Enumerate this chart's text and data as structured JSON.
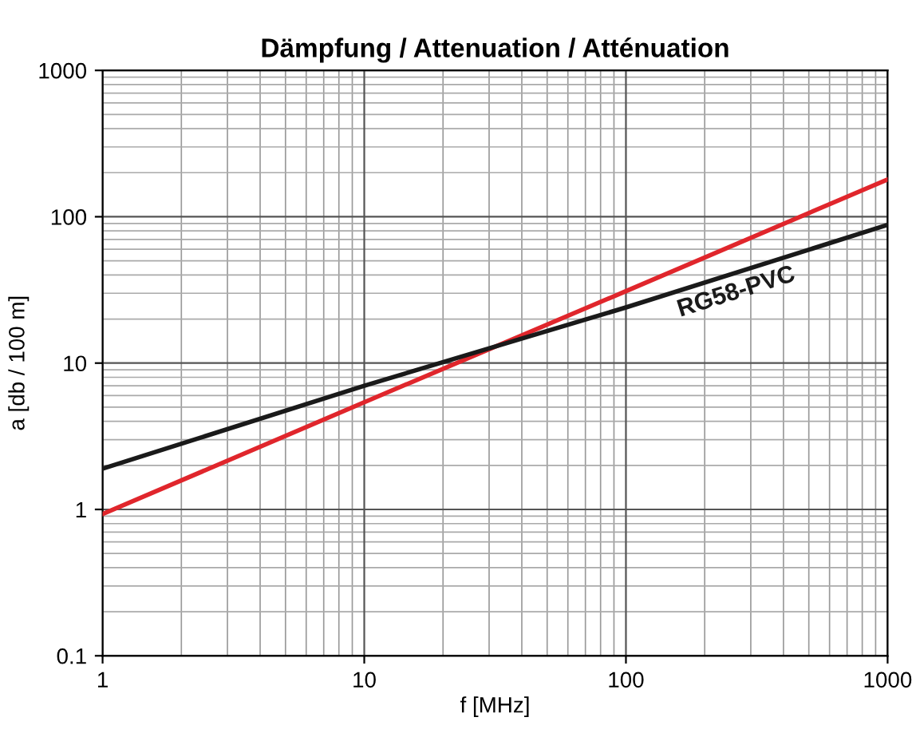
{
  "chart_data": {
    "type": "line",
    "title": "Dämpfung / Attenuation / Atténuation",
    "xlabel": "f [MHz]",
    "ylabel": "a [db / 100 m]",
    "log": "xy",
    "grid": true,
    "legend": false,
    "marker": "none",
    "line_style": "solid",
    "xlim": [
      1,
      1000
    ],
    "xticks": [
      1,
      10,
      100,
      1000
    ],
    "ylim": [
      0.1,
      1000
    ],
    "yticks": [
      0.1,
      1,
      10,
      100,
      1000
    ],
    "series": [
      {
        "color": "#e0262c",
        "x": [
          1,
          10,
          100,
          1000
        ],
        "values": [
          0.93,
          5.4,
          31,
          180
        ]
      },
      {
        "name": "RG58-PVC",
        "color": "#1a1a1a",
        "x": [
          1,
          10,
          100,
          1000
        ],
        "values": [
          1.9,
          7.0,
          24,
          88
        ]
      }
    ]
  }
}
